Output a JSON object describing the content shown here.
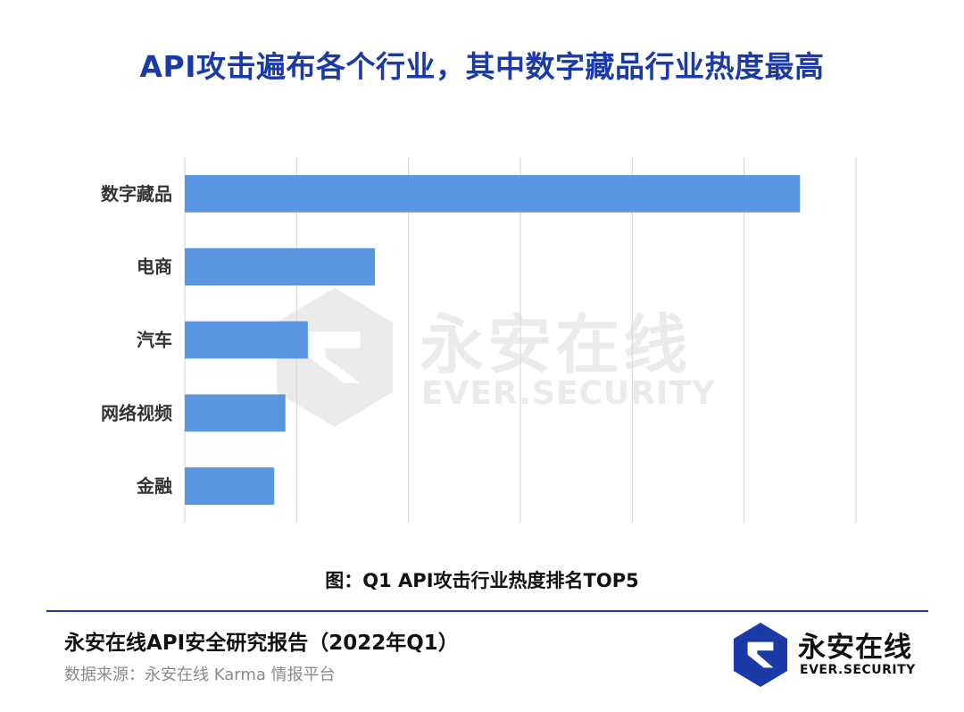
{
  "title": "API攻击遍布各个行业，其中数字藏品行业热度最高",
  "caption": "图：Q1 API攻击行业热度排名TOP5",
  "footer": {
    "report_title": "永安在线API安全研究报告（2022年Q1）",
    "source": "数据来源：永安在线 Karma 情报平台"
  },
  "logo": {
    "name_cn": "永安在线",
    "name_en": "EVER.SECURITY"
  },
  "watermark": {
    "name_cn": "永安在线",
    "name_en": "EVER.SECURITY"
  },
  "colors": {
    "bar": "#5b96e3",
    "title": "#1a3aa8",
    "grid": "#d9d9d9",
    "brand": "#1a3aa8"
  },
  "chart_data": {
    "type": "bar",
    "orientation": "horizontal",
    "categories": [
      "数字藏品",
      "电商",
      "汽车",
      "网络视频",
      "金融"
    ],
    "values": [
      5.5,
      1.7,
      1.1,
      0.9,
      0.8
    ],
    "xlim": [
      0,
      6
    ],
    "grid": true,
    "x_tick_labels_shown": false
  }
}
